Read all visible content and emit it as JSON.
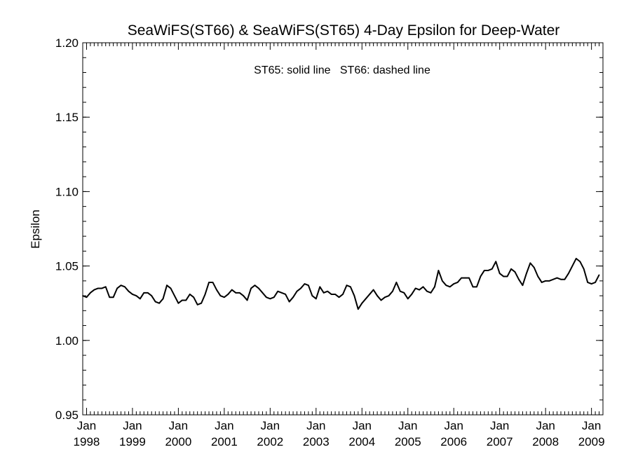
{
  "chart_data": {
    "type": "line",
    "title": "SeaWiFS(ST66) & SeaWiFS(ST65) 4-Day Epsilon for Deep-Water",
    "annotation": "ST65: solid line   ST66: dashed line",
    "xlabel": "",
    "ylabel": "Epsilon",
    "xlim": [
      "1997-12-01",
      "2009-04-01"
    ],
    "ylim": [
      0.95,
      1.2
    ],
    "y_ticks": [
      "0.95",
      "1.00",
      "1.05",
      "1.10",
      "1.15",
      "1.20"
    ],
    "x_ticks": [
      {
        "month": "Jan",
        "year": "1998",
        "date": "1998-01-01"
      },
      {
        "month": "Jan",
        "year": "1999",
        "date": "1999-01-01"
      },
      {
        "month": "Jan",
        "year": "2000",
        "date": "2000-01-01"
      },
      {
        "month": "Jan",
        "year": "2001",
        "date": "2001-01-01"
      },
      {
        "month": "Jan",
        "year": "2002",
        "date": "2002-01-01"
      },
      {
        "month": "Jan",
        "year": "2003",
        "date": "2003-01-01"
      },
      {
        "month": "Jan",
        "year": "2004",
        "date": "2004-01-01"
      },
      {
        "month": "Jan",
        "year": "2005",
        "date": "2005-01-01"
      },
      {
        "month": "Jan",
        "year": "2006",
        "date": "2006-01-01"
      },
      {
        "month": "Jan",
        "year": "2007",
        "date": "2007-01-01"
      },
      {
        "month": "Jan",
        "year": "2008",
        "date": "2008-01-01"
      },
      {
        "month": "Jan",
        "year": "2009",
        "date": "2009-01-01"
      }
    ],
    "grid": false,
    "series": [
      {
        "style": "solid",
        "color": "#000000",
        "points": [
          [
            "1997-12",
            1.03
          ],
          [
            "1998-01",
            1.029
          ],
          [
            "1998-02",
            1.032
          ],
          [
            "1998-03",
            1.034
          ],
          [
            "1998-04",
            1.035
          ],
          [
            "1998-05",
            1.035
          ],
          [
            "1998-06",
            1.036
          ],
          [
            "1998-07",
            1.029
          ],
          [
            "1998-08",
            1.029
          ],
          [
            "1998-09",
            1.035
          ],
          [
            "1998-10",
            1.037
          ],
          [
            "1998-11",
            1.036
          ],
          [
            "1998-12",
            1.033
          ],
          [
            "1999-01",
            1.031
          ],
          [
            "1999-02",
            1.03
          ],
          [
            "1999-03",
            1.028
          ],
          [
            "1999-04",
            1.032
          ],
          [
            "1999-05",
            1.032
          ],
          [
            "1999-06",
            1.03
          ],
          [
            "1999-07",
            1.026
          ],
          [
            "1999-08",
            1.025
          ],
          [
            "1999-09",
            1.028
          ],
          [
            "1999-10",
            1.037
          ],
          [
            "1999-11",
            1.035
          ],
          [
            "1999-12",
            1.03
          ],
          [
            "2000-01",
            1.025
          ],
          [
            "2000-02",
            1.027
          ],
          [
            "2000-03",
            1.027
          ],
          [
            "2000-04",
            1.031
          ],
          [
            "2000-05",
            1.029
          ],
          [
            "2000-06",
            1.024
          ],
          [
            "2000-07",
            1.025
          ],
          [
            "2000-08",
            1.031
          ],
          [
            "2000-09",
            1.039
          ],
          [
            "2000-10",
            1.039
          ],
          [
            "2000-11",
            1.034
          ],
          [
            "2000-12",
            1.03
          ],
          [
            "2001-01",
            1.029
          ],
          [
            "2001-02",
            1.031
          ],
          [
            "2001-03",
            1.034
          ],
          [
            "2001-04",
            1.032
          ],
          [
            "2001-05",
            1.032
          ],
          [
            "2001-06",
            1.03
          ],
          [
            "2001-07",
            1.027
          ],
          [
            "2001-08",
            1.035
          ],
          [
            "2001-09",
            1.037
          ],
          [
            "2001-10",
            1.035
          ],
          [
            "2001-11",
            1.032
          ],
          [
            "2001-12",
            1.029
          ],
          [
            "2002-01",
            1.028
          ],
          [
            "2002-02",
            1.029
          ],
          [
            "2002-03",
            1.033
          ],
          [
            "2002-04",
            1.032
          ],
          [
            "2002-05",
            1.031
          ],
          [
            "2002-06",
            1.026
          ],
          [
            "2002-07",
            1.029
          ],
          [
            "2002-08",
            1.033
          ],
          [
            "2002-09",
            1.035
          ],
          [
            "2002-10",
            1.038
          ],
          [
            "2002-11",
            1.037
          ],
          [
            "2002-12",
            1.03
          ],
          [
            "2003-01",
            1.028
          ],
          [
            "2003-02",
            1.036
          ],
          [
            "2003-03",
            1.032
          ],
          [
            "2003-04",
            1.033
          ],
          [
            "2003-05",
            1.031
          ],
          [
            "2003-06",
            1.031
          ],
          [
            "2003-07",
            1.029
          ],
          [
            "2003-08",
            1.031
          ],
          [
            "2003-09",
            1.037
          ],
          [
            "2003-10",
            1.036
          ],
          [
            "2003-11",
            1.03
          ],
          [
            "2003-12",
            1.021
          ],
          [
            "2004-01",
            1.025
          ],
          [
            "2004-02",
            1.028
          ],
          [
            "2004-03",
            1.031
          ],
          [
            "2004-04",
            1.034
          ],
          [
            "2004-05",
            1.03
          ],
          [
            "2004-06",
            1.027
          ],
          [
            "2004-07",
            1.029
          ],
          [
            "2004-08",
            1.03
          ],
          [
            "2004-09",
            1.033
          ],
          [
            "2004-10",
            1.039
          ],
          [
            "2004-11",
            1.033
          ],
          [
            "2004-12",
            1.032
          ],
          [
            "2005-01",
            1.028
          ],
          [
            "2005-02",
            1.031
          ],
          [
            "2005-03",
            1.035
          ],
          [
            "2005-04",
            1.034
          ],
          [
            "2005-05",
            1.036
          ],
          [
            "2005-06",
            1.033
          ],
          [
            "2005-07",
            1.032
          ],
          [
            "2005-08",
            1.036
          ],
          [
            "2005-09",
            1.047
          ],
          [
            "2005-10",
            1.04
          ],
          [
            "2005-11",
            1.037
          ],
          [
            "2005-12",
            1.036
          ],
          [
            "2006-01",
            1.038
          ],
          [
            "2006-02",
            1.039
          ],
          [
            "2006-03",
            1.042
          ],
          [
            "2006-04",
            1.042
          ],
          [
            "2006-05",
            1.042
          ],
          [
            "2006-06",
            1.036
          ],
          [
            "2006-07",
            1.036
          ],
          [
            "2006-08",
            1.043
          ],
          [
            "2006-09",
            1.047
          ],
          [
            "2006-10",
            1.047
          ],
          [
            "2006-11",
            1.048
          ],
          [
            "2006-12",
            1.053
          ],
          [
            "2007-01",
            1.045
          ],
          [
            "2007-02",
            1.043
          ],
          [
            "2007-03",
            1.043
          ],
          [
            "2007-04",
            1.048
          ],
          [
            "2007-05",
            1.046
          ],
          [
            "2007-06",
            1.041
          ],
          [
            "2007-07",
            1.037
          ],
          [
            "2007-08",
            1.045
          ],
          [
            "2007-09",
            1.052
          ],
          [
            "2007-10",
            1.049
          ],
          [
            "2007-11",
            1.043
          ],
          [
            "2007-12",
            1.039
          ],
          [
            "2008-01",
            1.04
          ],
          [
            "2008-02",
            1.04
          ],
          [
            "2008-03",
            1.041
          ],
          [
            "2008-04",
            1.042
          ],
          [
            "2008-05",
            1.041
          ],
          [
            "2008-06",
            1.041
          ],
          [
            "2008-07",
            1.045
          ],
          [
            "2008-08",
            1.05
          ],
          [
            "2008-09",
            1.055
          ],
          [
            "2008-10",
            1.053
          ],
          [
            "2008-11",
            1.048
          ],
          [
            "2008-12",
            1.039
          ],
          [
            "2009-01",
            1.038
          ],
          [
            "2009-02",
            1.039
          ],
          [
            "2009-03",
            1.044
          ]
        ]
      }
    ]
  }
}
